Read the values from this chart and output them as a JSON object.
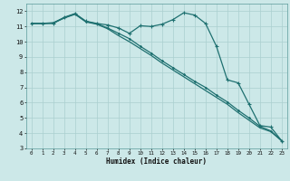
{
  "xlabel": "Humidex (Indice chaleur)",
  "background_color": "#cce8e8",
  "grid_color": "#aacfcf",
  "line_color": "#1e7070",
  "xlim": [
    -0.5,
    23.5
  ],
  "ylim": [
    3,
    12.5
  ],
  "xticks": [
    0,
    1,
    2,
    3,
    4,
    5,
    6,
    7,
    8,
    9,
    10,
    11,
    12,
    13,
    14,
    15,
    16,
    17,
    18,
    19,
    20,
    21,
    22,
    23
  ],
  "yticks": [
    3,
    4,
    5,
    6,
    7,
    8,
    9,
    10,
    11,
    12
  ],
  "line1_x": [
    0,
    1,
    2,
    3,
    4,
    5,
    6,
    7,
    8,
    9,
    10,
    11,
    12,
    13,
    14,
    15,
    16,
    17,
    18,
    19,
    20,
    21,
    22,
    23
  ],
  "line1_y": [
    11.2,
    11.2,
    11.2,
    11.6,
    11.85,
    11.35,
    11.2,
    11.1,
    10.9,
    10.55,
    11.05,
    11.0,
    11.15,
    11.45,
    11.9,
    11.75,
    11.2,
    9.7,
    7.5,
    7.3,
    5.9,
    4.5,
    4.4,
    3.5
  ],
  "line2_x": [
    0,
    1,
    2,
    3,
    4,
    5,
    6,
    7,
    8,
    9,
    10,
    11,
    12,
    13,
    14,
    15,
    16,
    17,
    18,
    19,
    20,
    21,
    22,
    23
  ],
  "line2_y": [
    11.2,
    11.2,
    11.25,
    11.58,
    11.82,
    11.32,
    11.18,
    10.9,
    10.55,
    10.2,
    9.7,
    9.25,
    8.75,
    8.3,
    7.85,
    7.4,
    7.0,
    6.5,
    6.05,
    5.5,
    5.0,
    4.45,
    4.15,
    3.5
  ],
  "line3_x": [
    0,
    1,
    2,
    3,
    4,
    5,
    6,
    7,
    8,
    9,
    10,
    11,
    12,
    13,
    14,
    15,
    16,
    17,
    18,
    19,
    20,
    21,
    22,
    23
  ],
  "line3_y": [
    11.2,
    11.2,
    11.22,
    11.55,
    11.8,
    11.3,
    11.15,
    10.85,
    10.4,
    10.0,
    9.55,
    9.1,
    8.6,
    8.15,
    7.7,
    7.25,
    6.8,
    6.35,
    5.9,
    5.35,
    4.85,
    4.35,
    4.1,
    3.5
  ]
}
